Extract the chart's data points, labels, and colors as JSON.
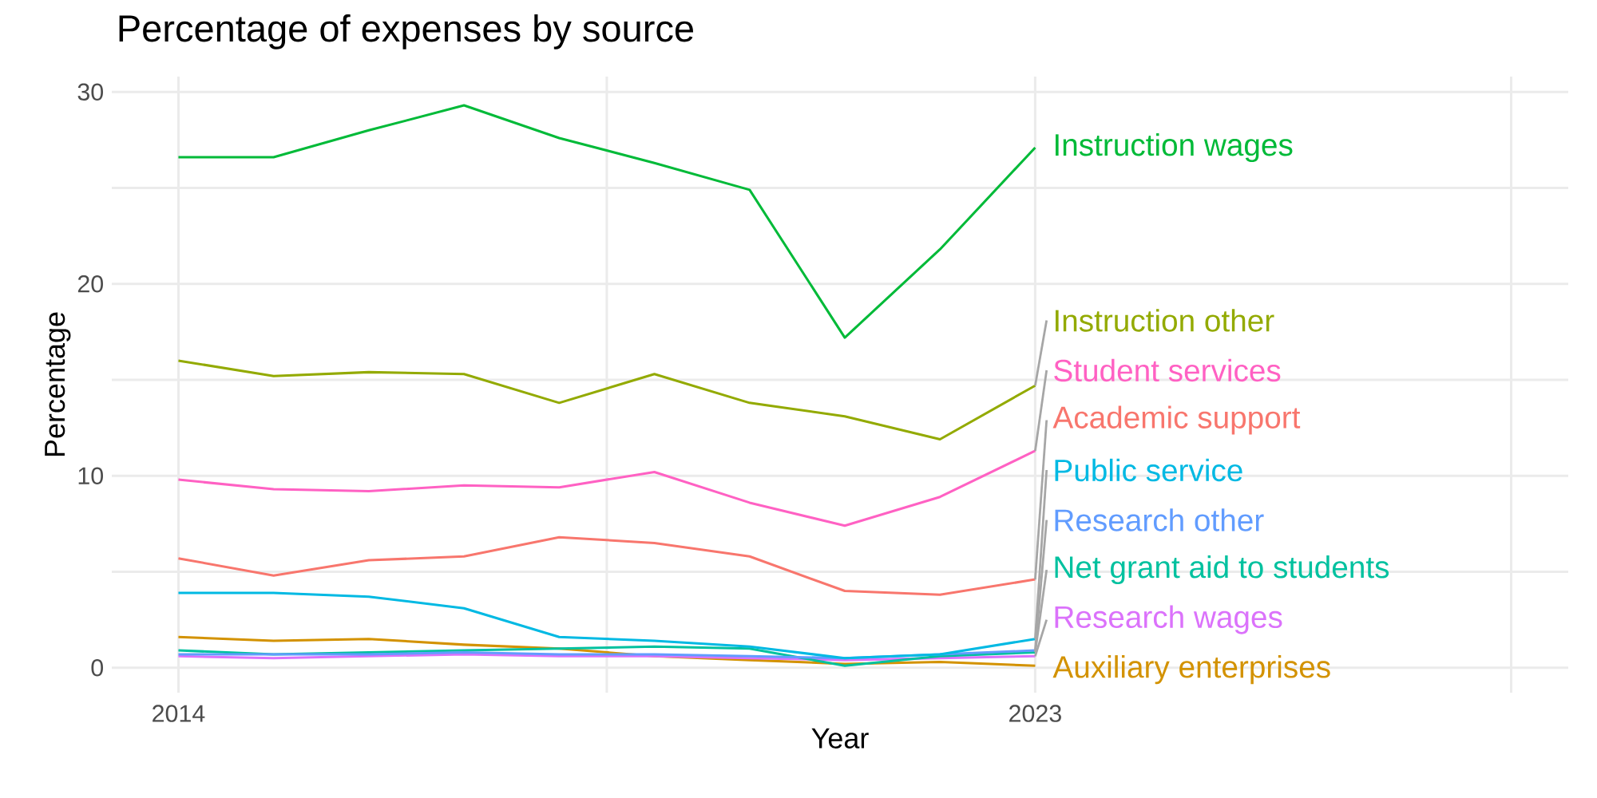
{
  "chart_data": {
    "type": "line",
    "title": "Percentage of expenses by source",
    "xlabel": "Year",
    "ylabel": "Percentage",
    "x": [
      2014,
      2015,
      2016,
      2017,
      2018,
      2019,
      2020,
      2021,
      2022,
      2023
    ],
    "series": [
      {
        "name": "Instruction wages",
        "color": "#00ba38",
        "values": [
          26.6,
          26.6,
          28.0,
          29.3,
          27.6,
          26.3,
          24.9,
          17.2,
          21.8,
          27.1
        ]
      },
      {
        "name": "Instruction other",
        "color": "#93aa00",
        "values": [
          16.0,
          15.2,
          15.4,
          15.3,
          13.8,
          15.3,
          13.8,
          13.1,
          11.9,
          14.7
        ]
      },
      {
        "name": "Student services",
        "color": "#ff61c3",
        "values": [
          9.8,
          9.3,
          9.2,
          9.5,
          9.4,
          10.2,
          8.6,
          7.4,
          8.9,
          11.3
        ]
      },
      {
        "name": "Academic support",
        "color": "#f8766d",
        "values": [
          5.7,
          4.8,
          5.6,
          5.8,
          6.8,
          6.5,
          5.8,
          4.0,
          3.8,
          4.6
        ]
      },
      {
        "name": "Public service",
        "color": "#00b9e3",
        "values": [
          3.9,
          3.9,
          3.7,
          3.1,
          1.6,
          1.4,
          1.1,
          0.5,
          0.7,
          1.5
        ]
      },
      {
        "name": "Research other",
        "color": "#619cff",
        "values": [
          0.7,
          0.7,
          0.7,
          0.8,
          0.7,
          0.7,
          0.6,
          0.5,
          0.7,
          0.9
        ]
      },
      {
        "name": "Net grant aid to students",
        "color": "#00c19f",
        "values": [
          0.9,
          0.7,
          0.8,
          0.9,
          1.0,
          1.1,
          1.0,
          0.1,
          0.6,
          0.8
        ]
      },
      {
        "name": "Research wages",
        "color": "#db72fb",
        "values": [
          0.6,
          0.5,
          0.6,
          0.7,
          0.6,
          0.6,
          0.5,
          0.4,
          0.5,
          0.6
        ]
      },
      {
        "name": "Auxiliary enterprises",
        "color": "#d39200",
        "values": [
          1.6,
          1.4,
          1.5,
          1.2,
          1.0,
          0.6,
          0.4,
          0.2,
          0.3,
          0.1
        ]
      }
    ],
    "xlim": [
      2013.3,
      2028.6
    ],
    "ylim": [
      -1.3,
      30.8
    ],
    "xticks": [
      2014,
      {
        "value": 2018.5,
        "label": null
      },
      2023,
      {
        "value": 2028,
        "label": null
      }
    ],
    "yticks": [
      0,
      {
        "value": 5,
        "label": null
      },
      10,
      {
        "value": 15,
        "label": null
      },
      20,
      {
        "value": 25,
        "label": null
      },
      30
    ],
    "grid": true
  }
}
